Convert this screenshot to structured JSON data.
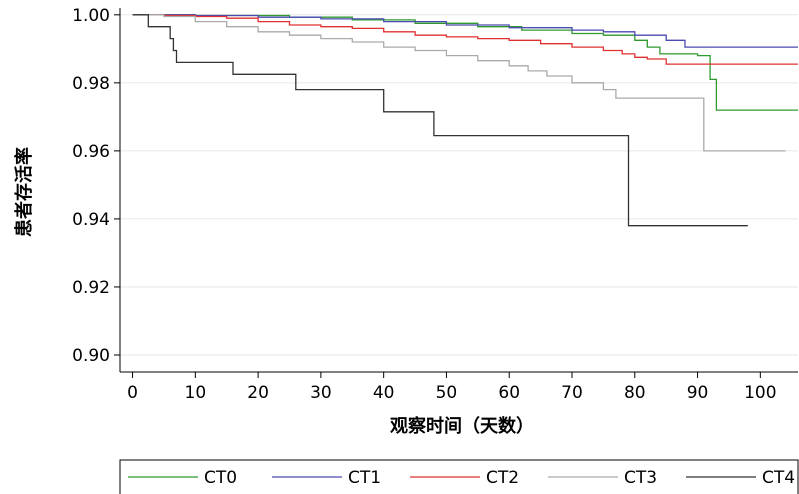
{
  "chart_data": {
    "type": "line",
    "step": true,
    "xlabel": "观察时间（天数）",
    "ylabel": "患者存活率",
    "xlim": [
      -2,
      106
    ],
    "ylim": [
      0.895,
      1.002
    ],
    "x_ticks": [
      0,
      10,
      20,
      30,
      40,
      50,
      60,
      70,
      80,
      90,
      100
    ],
    "y_ticks": [
      0.9,
      0.92,
      0.94,
      0.96,
      0.98,
      1.0
    ],
    "y_tick_labels": [
      "0.90",
      "0.92",
      "0.94",
      "0.96",
      "0.98",
      "1.00"
    ],
    "grid": "horizontal",
    "legend_position": "bottom",
    "series": [
      {
        "name": "CT0",
        "color": "#2e9a2e",
        "points": [
          [
            0,
            1.0
          ],
          [
            10,
            0.9998
          ],
          [
            25,
            0.9993
          ],
          [
            35,
            0.9985
          ],
          [
            45,
            0.9975
          ],
          [
            55,
            0.9965
          ],
          [
            62,
            0.9955
          ],
          [
            70,
            0.9945
          ],
          [
            75,
            0.994
          ],
          [
            80,
            0.9925
          ],
          [
            82,
            0.9905
          ],
          [
            84,
            0.9885
          ],
          [
            90,
            0.988
          ],
          [
            92,
            0.981
          ],
          [
            93,
            0.972
          ],
          [
            106,
            0.972
          ]
        ]
      },
      {
        "name": "CT1",
        "color": "#4a4ab0",
        "points": [
          [
            0,
            1.0
          ],
          [
            10,
            0.9998
          ],
          [
            20,
            0.9993
          ],
          [
            30,
            0.9988
          ],
          [
            40,
            0.998
          ],
          [
            50,
            0.997
          ],
          [
            60,
            0.9962
          ],
          [
            70,
            0.9955
          ],
          [
            75,
            0.995
          ],
          [
            80,
            0.994
          ],
          [
            85,
            0.9925
          ],
          [
            88,
            0.9905
          ],
          [
            106,
            0.9905
          ]
        ]
      },
      {
        "name": "CT2",
        "color": "#e03030",
        "points": [
          [
            0,
            1.0
          ],
          [
            5,
            0.9998
          ],
          [
            10,
            0.9995
          ],
          [
            15,
            0.999
          ],
          [
            20,
            0.998
          ],
          [
            25,
            0.997
          ],
          [
            30,
            0.9965
          ],
          [
            35,
            0.996
          ],
          [
            40,
            0.995
          ],
          [
            45,
            0.994
          ],
          [
            50,
            0.9935
          ],
          [
            55,
            0.993
          ],
          [
            60,
            0.9925
          ],
          [
            65,
            0.9915
          ],
          [
            70,
            0.9905
          ],
          [
            75,
            0.9895
          ],
          [
            78,
            0.9885
          ],
          [
            80,
            0.9875
          ],
          [
            82,
            0.987
          ],
          [
            85,
            0.9855
          ],
          [
            106,
            0.9855
          ]
        ]
      },
      {
        "name": "CT3",
        "color": "#aaaaaa",
        "points": [
          [
            0,
            1.0
          ],
          [
            5,
            0.9995
          ],
          [
            10,
            0.998
          ],
          [
            15,
            0.9965
          ],
          [
            20,
            0.995
          ],
          [
            25,
            0.994
          ],
          [
            30,
            0.993
          ],
          [
            35,
            0.992
          ],
          [
            40,
            0.9905
          ],
          [
            45,
            0.9895
          ],
          [
            50,
            0.988
          ],
          [
            55,
            0.9865
          ],
          [
            60,
            0.985
          ],
          [
            63,
            0.9835
          ],
          [
            66,
            0.982
          ],
          [
            70,
            0.98
          ],
          [
            75,
            0.978
          ],
          [
            77,
            0.9755
          ],
          [
            90,
            0.9755
          ],
          [
            91,
            0.96
          ],
          [
            104,
            0.96
          ]
        ]
      },
      {
        "name": "CT4",
        "color": "#333333",
        "points": [
          [
            0,
            1.0
          ],
          [
            2.5,
            0.9965
          ],
          [
            6,
            0.993
          ],
          [
            6.5,
            0.9895
          ],
          [
            7,
            0.986
          ],
          [
            16,
            0.9825
          ],
          [
            26,
            0.978
          ],
          [
            40,
            0.9715
          ],
          [
            48,
            0.9645
          ],
          [
            79,
            0.938
          ],
          [
            98,
            0.938
          ]
        ]
      }
    ]
  }
}
